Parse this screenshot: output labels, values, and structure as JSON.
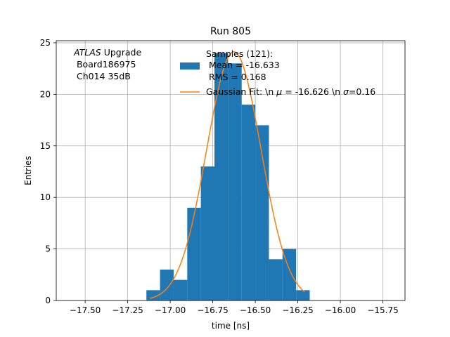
{
  "chart_data": {
    "type": "bar",
    "title": "Run 805",
    "xlabel": "time [ns]",
    "ylabel": "Entries",
    "xlim": [
      -17.67,
      -15.62
    ],
    "ylim": [
      0,
      25.2
    ],
    "xticks": [
      -17.5,
      -17.25,
      -17.0,
      -16.75,
      -16.5,
      -16.25,
      -16.0,
      -15.75
    ],
    "xtick_labels": [
      "−17.50",
      "−17.25",
      "−17.00",
      "−16.75",
      "−16.50",
      "−16.25",
      "−16.00",
      "−15.75"
    ],
    "yticks": [
      0,
      5,
      10,
      15,
      20,
      25
    ],
    "ytick_labels": [
      "0",
      "5",
      "10",
      "15",
      "20",
      "25"
    ],
    "grid": true,
    "legend_position": "top-right",
    "bin_edges": [
      -17.14,
      -17.06,
      -16.98,
      -16.9,
      -16.82,
      -16.74,
      -16.66,
      -16.58,
      -16.5,
      -16.42,
      -16.34,
      -16.26,
      -16.18
    ],
    "series": [
      {
        "name": "Samples (121):\n Mean = -16.633\n RMS = 0.168",
        "kind": "histogram",
        "color": "#1f77b4",
        "values": [
          1,
          3,
          2,
          9,
          13,
          24,
          23,
          19,
          17,
          4,
          5,
          1
        ]
      },
      {
        "name": "Gaussian Fit: \\n $\\mu$ = -16.626 \\n $\\sigma$=0.16",
        "kind": "line",
        "color": "#ff7f0e",
        "mu": -16.626,
        "sigma": 0.16,
        "x_range": [
          -17.12,
          -16.21
        ]
      }
    ],
    "annotation": {
      "italic": "ATLAS",
      "lines": [
        " Upgrade",
        " Board186975",
        " Ch014 35dB"
      ]
    },
    "legend": {
      "hist_lines": [
        "Samples (121):",
        " Mean = -16.633",
        " RMS = 0.168"
      ],
      "fit_prefix": "Gaussian Fit: \\n ",
      "fit_mu_symbol": "μ",
      "fit_mid": " = -16.626 \\n ",
      "fit_sigma_symbol": "σ",
      "fit_suffix": "=0.16"
    }
  }
}
